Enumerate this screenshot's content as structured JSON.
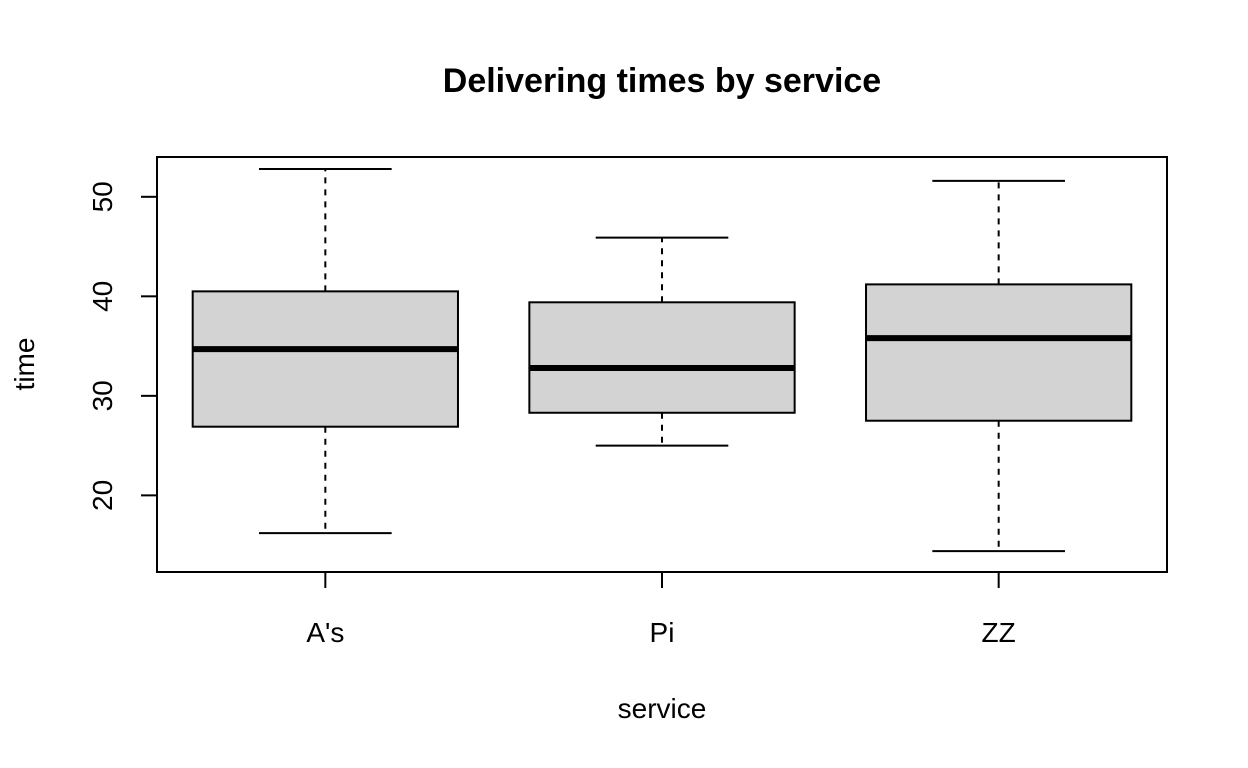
{
  "chart_data": {
    "type": "boxplot",
    "title": "Delivering times by service",
    "xlabel": "service",
    "ylabel": "time",
    "categories": [
      "A's",
      "Pi",
      "ZZ"
    ],
    "boxes": [
      {
        "category": "A's",
        "min": 16.2,
        "q1": 26.9,
        "median": 34.7,
        "q3": 40.5,
        "max": 52.8
      },
      {
        "category": "Pi",
        "min": 25.0,
        "q1": 28.3,
        "median": 32.8,
        "q3": 39.4,
        "max": 45.9
      },
      {
        "category": "ZZ",
        "min": 14.4,
        "q1": 27.5,
        "median": 35.8,
        "q3": 41.2,
        "max": 51.6
      }
    ],
    "yticks": [
      20,
      30,
      40,
      50
    ],
    "ylim": [
      12.3,
      54.0
    ],
    "grid": false,
    "box_fill": "#d3d3d3",
    "line_color": "#000000"
  }
}
